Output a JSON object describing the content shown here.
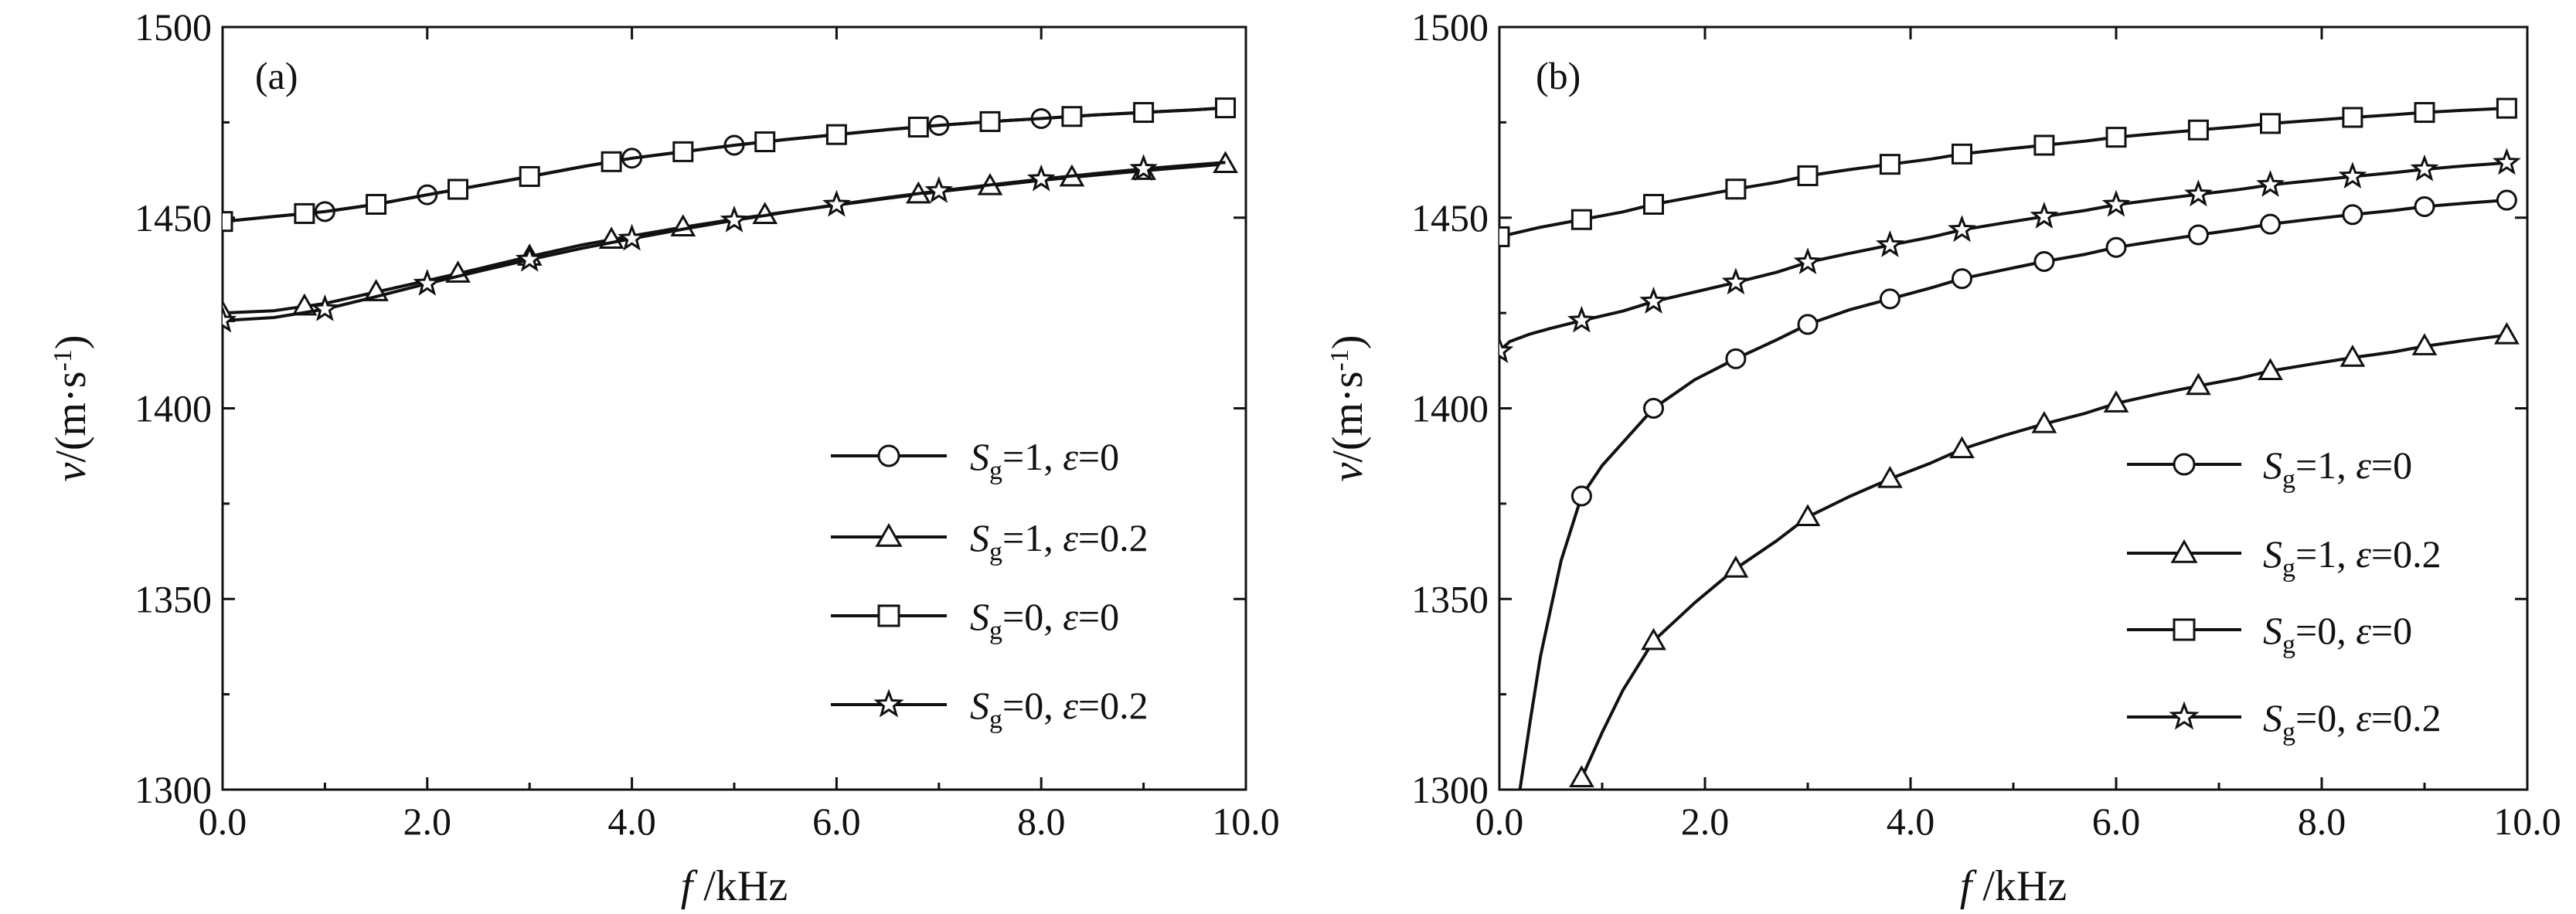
{
  "chart_data": [
    {
      "type": "line",
      "panel_label": "(a)",
      "xlabel": {
        "var": "f",
        "unit": "/kHz"
      },
      "ylabel": {
        "var": "v",
        "unit_pre": "/(m·s",
        "unit_sup": "-1",
        "unit_post": ")"
      },
      "xlim": [
        0,
        10
      ],
      "ylim": [
        1300,
        1500
      ],
      "xticks": [
        "0.0",
        "2.0",
        "4.0",
        "6.0",
        "8.0",
        "10.0"
      ],
      "yticks": [
        "1300",
        "1350",
        "1400",
        "1450",
        "1500"
      ],
      "legend_position": "lower-right",
      "series": [
        {
          "name": "Sg=1, ε=0",
          "sym": "S",
          "sub": "g",
          "mid": "=1, ",
          "eps": "ε",
          "tail": "=0",
          "marker": "circle",
          "x": [
            0.0,
            0.5,
            1.0,
            1.5,
            2.0,
            2.5,
            3.0,
            3.5,
            4.0,
            4.5,
            5.0,
            5.5,
            6.0,
            6.5,
            7.0,
            7.5,
            8.0,
            8.5,
            9.0,
            9.5,
            9.8
          ],
          "y": [
            1449,
            1450.3,
            1451.6,
            1453.5,
            1456.0,
            1458.4,
            1460.8,
            1463.3,
            1465.6,
            1467.3,
            1469.0,
            1470.5,
            1471.8,
            1473.1,
            1474.2,
            1475.2,
            1476.0,
            1476.9,
            1477.6,
            1478.3,
            1478.8
          ],
          "marker_x": [
            1.0,
            2.0,
            4.0,
            5.0,
            7.0,
            8.0
          ]
        },
        {
          "name": "Sg=1, ε=0.2",
          "sym": "S",
          "sub": "g",
          "mid": "=1, ",
          "eps": "ε",
          "tail": "=0.2",
          "marker": "triangle",
          "x": [
            0.0,
            0.5,
            1.0,
            1.5,
            2.0,
            2.5,
            3.0,
            3.5,
            4.0,
            4.5,
            5.0,
            5.5,
            6.0,
            6.5,
            7.0,
            7.5,
            8.0,
            8.5,
            9.0,
            9.5,
            9.8
          ],
          "y": [
            1425,
            1425.6,
            1427.5,
            1430.5,
            1433.5,
            1436.6,
            1439.8,
            1442.8,
            1445.2,
            1447.5,
            1449.6,
            1451.5,
            1453.3,
            1455.1,
            1456.8,
            1458.3,
            1459.8,
            1461.1,
            1462.3,
            1463.4,
            1464.1
          ],
          "marker_x": [
            0.0,
            0.8,
            1.5,
            2.3,
            3.0,
            3.8,
            4.5,
            5.3,
            6.8,
            7.5,
            8.3,
            9.0,
            9.8
          ]
        },
        {
          "name": "Sg=0, ε=0",
          "sym": "S",
          "sub": "g",
          "mid": "=0, ",
          "eps": "ε",
          "tail": "=0",
          "marker": "square",
          "x": [
            0.0,
            0.5,
            1.0,
            1.5,
            2.0,
            2.5,
            3.0,
            3.5,
            4.0,
            4.5,
            5.0,
            5.5,
            6.0,
            6.5,
            7.0,
            7.5,
            8.0,
            8.5,
            9.0,
            9.5,
            9.8
          ],
          "y": [
            1449,
            1450.3,
            1451.6,
            1453.5,
            1456.0,
            1458.4,
            1460.8,
            1463.3,
            1465.6,
            1467.3,
            1469.0,
            1470.5,
            1471.8,
            1473.1,
            1474.2,
            1475.2,
            1476.0,
            1476.9,
            1477.6,
            1478.3,
            1478.8
          ],
          "marker_x": [
            0.0,
            0.8,
            1.5,
            2.3,
            3.0,
            3.8,
            4.5,
            5.3,
            6.0,
            6.8,
            7.5,
            8.3,
            9.0,
            9.8
          ]
        },
        {
          "name": "Sg=0, ε=0.2",
          "sym": "S",
          "sub": "g",
          "mid": "=0, ",
          "eps": "ε",
          "tail": "=0.2",
          "marker": "star",
          "x": [
            0.0,
            0.5,
            1.0,
            1.5,
            2.0,
            2.5,
            3.0,
            3.5,
            4.0,
            4.5,
            5.0,
            5.5,
            6.0,
            6.5,
            7.0,
            7.5,
            8.0,
            8.5,
            9.0,
            9.5,
            9.8
          ],
          "y": [
            1423,
            1423.8,
            1426.0,
            1429.3,
            1432.7,
            1435.9,
            1439.0,
            1441.9,
            1444.5,
            1447.0,
            1449.3,
            1451.4,
            1453.4,
            1455.3,
            1457.0,
            1458.6,
            1460.1,
            1461.5,
            1462.8,
            1463.9,
            1464.5
          ],
          "marker_x": [
            0.0,
            1.0,
            2.0,
            3.0,
            4.0,
            5.0,
            6.0,
            7.0,
            8.0,
            9.0
          ]
        }
      ]
    },
    {
      "type": "line",
      "panel_label": "(b)",
      "xlabel": {
        "var": "f",
        "unit": "/kHz"
      },
      "ylabel": {
        "var": "v",
        "unit_pre": "/(m·s",
        "unit_sup": "-1",
        "unit_post": ")"
      },
      "xlim": [
        0,
        10
      ],
      "ylim": [
        1300,
        1500
      ],
      "xticks": [
        "0.0",
        "2.0",
        "4.0",
        "6.0",
        "8.0",
        "10.0"
      ],
      "yticks": [
        "1300",
        "1350",
        "1400",
        "1450",
        "1500"
      ],
      "legend_position": "lower-right",
      "series": [
        {
          "name": "Sg=1, ε=0",
          "sym": "S",
          "sub": "g",
          "mid": "=1, ",
          "eps": "ε",
          "tail": "=0",
          "marker": "circle",
          "x": [
            0.2,
            0.3,
            0.4,
            0.6,
            0.8,
            1.0,
            1.2,
            1.5,
            1.9,
            2.3,
            2.7,
            3.0,
            3.4,
            3.8,
            4.2,
            4.5,
            4.9,
            5.3,
            5.7,
            6.0,
            6.4,
            6.8,
            7.2,
            7.5,
            7.9,
            8.3,
            8.7,
            9.0,
            9.4,
            9.8
          ],
          "y": [
            1300,
            1318,
            1335,
            1360,
            1377,
            1385,
            1391,
            1400,
            1407.5,
            1413,
            1418,
            1422,
            1425.8,
            1428.7,
            1431.6,
            1434,
            1436.3,
            1438.5,
            1440.4,
            1442.2,
            1443.9,
            1445.5,
            1447,
            1448.3,
            1449.6,
            1450.8,
            1451.9,
            1452.9,
            1453.8,
            1454.6
          ],
          "marker_x": [
            0.8,
            1.5,
            2.3,
            3.0,
            3.8,
            4.5,
            5.3,
            6.0,
            6.8,
            7.5,
            8.3,
            9.0,
            9.8
          ]
        },
        {
          "name": "Sg=1, ε=0.2",
          "sym": "S",
          "sub": "g",
          "mid": "=1, ",
          "eps": "ε",
          "tail": "=0.2",
          "marker": "triangle",
          "x": [
            0.8,
            1.0,
            1.2,
            1.5,
            1.9,
            2.3,
            2.7,
            3.0,
            3.4,
            3.8,
            4.2,
            4.5,
            4.9,
            5.3,
            5.7,
            6.0,
            6.4,
            6.8,
            7.2,
            7.5,
            7.9,
            8.3,
            8.7,
            9.0,
            9.4,
            9.8
          ],
          "y": [
            1303,
            1315,
            1326,
            1339,
            1349,
            1358,
            1365.3,
            1371.5,
            1376.8,
            1381.5,
            1385.7,
            1389.3,
            1392.8,
            1395.9,
            1398.7,
            1401.3,
            1403.7,
            1405.9,
            1407.9,
            1409.8,
            1411.6,
            1413.3,
            1414.8,
            1416.3,
            1417.8,
            1419.2
          ],
          "marker_x": [
            0.8,
            1.5,
            2.3,
            3.0,
            3.8,
            4.5,
            5.3,
            6.0,
            6.8,
            7.5,
            8.3,
            9.0,
            9.8
          ]
        },
        {
          "name": "Sg=0, ε=0",
          "sym": "S",
          "sub": "g",
          "mid": "=0, ",
          "eps": "ε",
          "tail": "=0",
          "marker": "square",
          "x": [
            0.0,
            0.4,
            0.8,
            1.2,
            1.5,
            1.9,
            2.3,
            2.7,
            3.0,
            3.4,
            3.8,
            4.2,
            4.5,
            4.9,
            5.3,
            5.7,
            6.0,
            6.4,
            6.8,
            7.2,
            7.5,
            7.9,
            8.3,
            8.7,
            9.0,
            9.4,
            9.8
          ],
          "y": [
            1445,
            1447.5,
            1449.5,
            1451.5,
            1453.5,
            1455.5,
            1457.5,
            1459.3,
            1461,
            1462.6,
            1464,
            1465.4,
            1466.7,
            1467.9,
            1469,
            1470.1,
            1471.1,
            1472.1,
            1473,
            1473.9,
            1474.7,
            1475.5,
            1476.3,
            1477,
            1477.6,
            1478.2,
            1478.7
          ],
          "marker_x": [
            0.0,
            0.8,
            1.5,
            2.3,
            3.0,
            3.8,
            4.5,
            5.3,
            6.0,
            6.8,
            7.5,
            8.3,
            9.0,
            9.8
          ]
        },
        {
          "name": "Sg=0, ε=0.2",
          "sym": "S",
          "sub": "g",
          "mid": "=0, ",
          "eps": "ε",
          "tail": "=0.2",
          "marker": "star",
          "x": [
            0.0,
            0.1,
            0.3,
            0.5,
            0.8,
            1.2,
            1.5,
            1.9,
            2.3,
            2.7,
            3.0,
            3.4,
            3.8,
            4.2,
            4.5,
            4.9,
            5.3,
            5.7,
            6.0,
            6.4,
            6.8,
            7.2,
            7.5,
            7.9,
            8.3,
            8.7,
            9.0,
            9.4,
            9.8
          ],
          "y": [
            1415,
            1417.5,
            1419.5,
            1421,
            1423,
            1425.5,
            1428,
            1430.5,
            1433,
            1435.7,
            1438.3,
            1440.6,
            1442.8,
            1444.9,
            1446.8,
            1448.6,
            1450.3,
            1451.9,
            1453.4,
            1454.8,
            1456.1,
            1457.4,
            1458.6,
            1459.7,
            1460.8,
            1461.8,
            1462.7,
            1463.6,
            1464.4
          ],
          "marker_x": [
            0.0,
            0.8,
            1.5,
            2.3,
            3.0,
            3.8,
            4.5,
            5.3,
            6.0,
            6.8,
            7.5,
            8.3,
            9.0,
            9.8
          ]
        }
      ]
    }
  ]
}
